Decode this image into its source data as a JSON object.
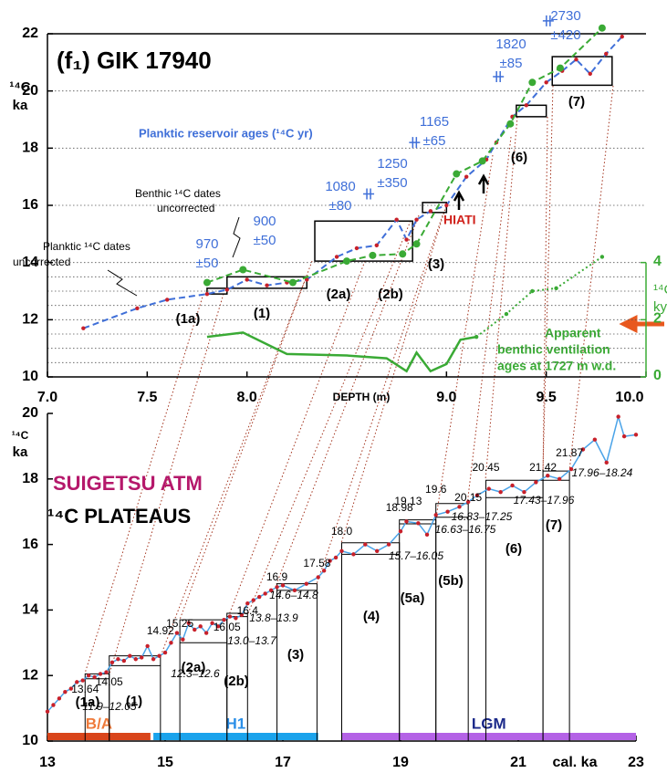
{
  "chart_data": [
    {
      "type": "line",
      "title": "(f₁) GIK 17940",
      "ylabel": [
        "¹⁴C",
        "ka"
      ],
      "y2label": [
        "¹⁴C",
        "ky"
      ],
      "xlabel": "DEPTH (m)",
      "xlim": [
        7,
        10
      ],
      "ylim": [
        10,
        22
      ],
      "y2lim": [
        0,
        12
      ],
      "xticks": [
        {
          "value": 7,
          "label": "7.0"
        },
        7.5,
        {
          "value": 8,
          "label": "8.0"
        },
        {
          "value": 9,
          "label": "9.0"
        },
        9.5,
        {
          "value": 10,
          "label": "10.0"
        }
      ],
      "yticks": [
        10,
        12,
        14,
        16,
        18,
        20,
        22
      ],
      "y2ticks": [
        0,
        2,
        4
      ],
      "grid_y": [
        10.5,
        11,
        11.5,
        12,
        12.5,
        13,
        13.5,
        14,
        16,
        18,
        20
      ],
      "series": [
        {
          "color": "#3f6fd8",
          "style": "dashed",
          "marker_color": "#c8202a",
          "x": [
            7.18,
            7.45,
            7.6,
            7.8,
            7.9,
            8.0,
            8.1,
            8.2,
            8.3,
            8.45,
            8.55,
            8.65,
            8.75,
            8.8,
            8.85,
            8.92,
            9.0,
            9.1,
            9.2,
            9.25,
            9.33,
            9.4,
            9.5,
            9.58,
            9.65,
            9.72,
            9.8,
            9.88
          ],
          "values": [
            11.7,
            12.4,
            12.7,
            12.9,
            13.05,
            13.4,
            13.2,
            13.3,
            13.4,
            14.2,
            14.5,
            14.6,
            15.5,
            14.8,
            15.5,
            15.8,
            16.0,
            17.0,
            17.6,
            18.2,
            19.1,
            19.5,
            20.3,
            20.7,
            21.1,
            20.6,
            21.3,
            21.9
          ]
        },
        {
          "color": "#3aaa35",
          "style": "dashed",
          "marker_color": "#3aaa35",
          "x": [
            7.8,
            7.98,
            8.23,
            8.5,
            8.63,
            8.78,
            8.85,
            9.05,
            9.18,
            9.32,
            9.43,
            9.57,
            9.78
          ],
          "values": [
            13.3,
            13.75,
            13.3,
            14.05,
            14.25,
            14.3,
            14.65,
            17.1,
            17.55,
            18.85,
            20.3,
            20.8,
            22.2
          ]
        },
        {
          "color": "#3aaa35",
          "style": "solid",
          "axis": "y2",
          "x": [
            7.8,
            7.98,
            8.2,
            8.5,
            8.7,
            8.8,
            8.85,
            8.92,
            9.0,
            9.07,
            9.15
          ],
          "values": [
            1.4,
            1.55,
            0.8,
            0.75,
            0.65,
            0.2,
            0.85,
            0.2,
            0.45,
            1.3,
            1.4
          ]
        },
        {
          "color": "#3aaa35",
          "style": "dotted",
          "axis": "y2",
          "marker_color": "#3aaa35",
          "x": [
            9.15,
            9.3,
            9.43,
            9.55,
            9.78
          ],
          "values": [
            1.4,
            2.2,
            3.0,
            3.1,
            4.2
          ]
        }
      ],
      "reservoir_markers": {
        "color": "#3f6fd8",
        "x": [
          8.61,
          8.84,
          9.26,
          9.51
        ],
        "values": [
          16.4,
          18.2,
          20.5,
          22.45
        ]
      },
      "reservoir_labels": [
        [
          "970",
          "±50"
        ],
        [
          "900",
          "±50"
        ],
        [
          "1080",
          "±80"
        ],
        [
          "1250",
          "±350"
        ],
        [
          "1165",
          "±65"
        ],
        [
          "1820",
          "±85"
        ],
        [
          "2730",
          "±420"
        ]
      ],
      "boxes": [
        {
          "x": [
            7.8,
            7.9
          ],
          "y": [
            12.9,
            13.1
          ]
        },
        {
          "x": [
            7.9,
            8.3
          ],
          "y": [
            13.1,
            13.5
          ]
        },
        {
          "x": [
            8.34,
            8.83
          ],
          "y": [
            14.05,
            15.45
          ]
        },
        {
          "x": [
            8.88,
            9.0
          ],
          "y": [
            15.75,
            16.1
          ]
        },
        {
          "x": [
            9.35,
            9.5
          ],
          "y": [
            19.1,
            19.5
          ]
        },
        {
          "x": [
            9.53,
            9.83
          ],
          "y": [
            20.2,
            21.2
          ]
        }
      ],
      "box_labels": [
        "(1a)",
        "(1)",
        "(2a)",
        "(2b)",
        "(3)",
        "(6)",
        "(7)"
      ],
      "annotations": [
        [
          "Planktic reservoir ages (¹⁴C yr)"
        ],
        [
          "Benthic ¹⁴C dates",
          "uncorrected"
        ],
        [
          "Planktic ¹⁴C dates",
          "uncorrected"
        ],
        [
          "HIATI"
        ],
        [
          "Apparent",
          "benthic ventilation",
          "ages at 1727 m w.d."
        ]
      ]
    },
    {
      "type": "line",
      "title": [
        "SUIGETSU  ATM",
        "¹⁴C PLATEAUS"
      ],
      "ylabel": [
        "¹⁴C",
        "ka"
      ],
      "xlabel": "cal. ka",
      "xlim": [
        13,
        23
      ],
      "ylim": [
        10,
        20
      ],
      "xticks": [
        13,
        15,
        17,
        19,
        21,
        23
      ],
      "yticks": [
        10,
        12,
        14,
        16,
        18,
        20
      ],
      "series": [
        {
          "color": "#4aa3e8",
          "style": "solid",
          "marker_color": "#c8202a",
          "x": [
            13.0,
            13.1,
            13.2,
            13.3,
            13.4,
            13.5,
            13.6,
            13.7,
            13.8,
            13.9,
            14.0,
            14.1,
            14.2,
            14.3,
            14.4,
            14.5,
            14.6,
            14.7,
            14.8,
            14.9,
            15.0,
            15.1,
            15.2,
            15.3,
            15.4,
            15.5,
            15.6,
            15.7,
            15.8,
            15.9,
            16.0,
            16.1,
            16.2,
            16.3,
            16.4,
            16.5,
            16.6,
            16.7,
            16.8,
            16.9,
            17.0,
            17.2,
            17.4,
            17.6,
            17.7,
            17.8,
            17.9,
            18.0,
            18.2,
            18.4,
            18.6,
            18.8,
            19.0,
            19.1,
            19.3,
            19.45,
            19.6,
            19.8,
            20.0,
            20.15,
            20.3,
            20.5,
            20.7,
            20.9,
            21.1,
            21.3,
            21.5,
            21.7,
            21.9,
            22.1,
            22.3,
            22.5,
            22.7,
            22.8,
            23.0
          ],
          "values": [
            10.9,
            11.1,
            11.3,
            11.5,
            11.6,
            11.8,
            11.85,
            12.0,
            11.95,
            12.05,
            12.1,
            12.4,
            12.5,
            12.45,
            12.6,
            12.5,
            12.55,
            12.9,
            12.5,
            12.6,
            12.7,
            13.0,
            13.3,
            13.1,
            13.6,
            13.4,
            13.5,
            13.3,
            13.6,
            13.5,
            13.7,
            13.8,
            13.75,
            13.85,
            14.2,
            14.3,
            14.4,
            14.5,
            14.6,
            14.7,
            14.75,
            14.6,
            14.8,
            15.0,
            15.2,
            15.5,
            15.6,
            15.8,
            15.7,
            16.0,
            15.8,
            16.0,
            16.4,
            16.7,
            16.65,
            16.3,
            16.9,
            17.0,
            17.15,
            17.3,
            17.5,
            17.7,
            17.6,
            17.8,
            17.6,
            17.9,
            18.1,
            18.0,
            18.3,
            18.9,
            19.2,
            18.5,
            19.9,
            19.3,
            19.35
          ]
        }
      ],
      "plateaus": [
        {
          "label": "(1a)",
          "range": "11.9–12.05",
          "x": [
            13.64,
            14.05
          ],
          "y": [
            11.9,
            12.05
          ]
        },
        {
          "label": "(1)",
          "range": "12.3–12.6",
          "x": [
            14.05,
            14.92
          ],
          "y": [
            12.3,
            12.6
          ]
        },
        {
          "label": "(2a)",
          "range": "13.0–13.7",
          "x": [
            15.25,
            16.05
          ],
          "y": [
            13.0,
            13.7
          ]
        },
        {
          "label": "(2b)",
          "range": "13.8–13.9",
          "x": [
            16.05,
            16.4
          ],
          "y": [
            13.8,
            13.9
          ]
        },
        {
          "label": "(3)",
          "range": "14.6–14.8",
          "x": [
            16.9,
            17.58
          ],
          "y": [
            14.6,
            14.8
          ]
        },
        {
          "label": "(4)",
          "range": "15.7–16.05",
          "x": [
            18.0,
            18.98
          ],
          "y": [
            15.7,
            16.05
          ]
        },
        {
          "label": "(5a)",
          "range": "16.63–16.75",
          "x": [
            18.98,
            19.6
          ],
          "y": [
            16.63,
            16.75
          ]
        },
        {
          "label": "(5b)",
          "range": "16.83–17.25",
          "x": [
            19.6,
            20.15
          ],
          "y": [
            16.83,
            17.25
          ]
        },
        {
          "label": "(6)",
          "range": "17.43–17.96",
          "x": [
            20.45,
            21.42
          ],
          "y": [
            17.43,
            17.96
          ]
        },
        {
          "label": "(7)",
          "range": "17.96–18.24",
          "x": [
            21.42,
            21.87
          ],
          "y": [
            17.96,
            18.24
          ]
        }
      ],
      "cal_labels": [
        13.64,
        14.05,
        14.92,
        15.25,
        16.05,
        16.4,
        16.9,
        17.58,
        {
          "value": 18.0,
          "label": "18.0"
        },
        18.98,
        19.13,
        19.6,
        20.15,
        20.45,
        21.42,
        21.87
      ],
      "periods": [
        {
          "label": "B/A",
          "x": [
            13.0,
            14.75
          ],
          "color": "#d9451b",
          "text_color": "#ef7a3a"
        },
        {
          "label": "H1",
          "x": [
            14.8,
            17.6
          ],
          "color": "#1aa3ec",
          "text_color": "#2b8fe8"
        },
        {
          "label": "LGM",
          "x": [
            18.0,
            23.0
          ],
          "color": "#b462e6",
          "text_color": "#1c2a8a"
        }
      ]
    }
  ]
}
